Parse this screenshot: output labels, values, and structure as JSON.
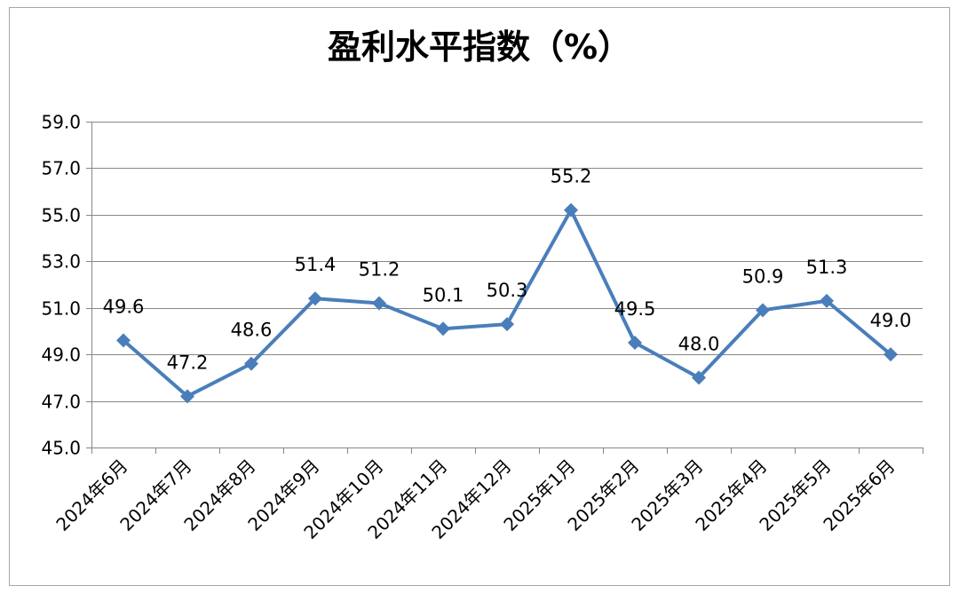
{
  "chart_data": {
    "type": "line",
    "title": "盈利水平指数（%）",
    "categories": [
      "2024年6月",
      "2024年7月",
      "2024年8月",
      "2024年9月",
      "2024年10月",
      "2024年11月",
      "2024年12月",
      "2025年1月",
      "2025年2月",
      "2025年3月",
      "2025年4月",
      "2025年5月",
      "2025年6月"
    ],
    "series": [
      {
        "values": [
          49.6,
          47.2,
          48.6,
          51.4,
          51.2,
          50.1,
          50.3,
          55.2,
          49.5,
          48.0,
          50.9,
          51.3,
          49.0
        ],
        "marker": "diamond"
      }
    ],
    "data_labels": [
      "49.6",
      "47.2",
      "48.6",
      "51.4",
      "51.2",
      "50.1",
      "50.3",
      "55.2",
      "49.5",
      "48.0",
      "50.9",
      "51.3",
      "49.0"
    ],
    "yticks": [
      "45.0",
      "47.0",
      "49.0",
      "51.0",
      "53.0",
      "55.0",
      "57.0",
      "59.0"
    ],
    "ylim": [
      45,
      59
    ],
    "grid": true,
    "legend": "none"
  },
  "colors": {
    "series_line": "#4A7EBB",
    "gridline": "#878787",
    "axis": "#878787",
    "text": "#000000",
    "frame": "#A6A6A6",
    "background": "#FFFFFF"
  }
}
